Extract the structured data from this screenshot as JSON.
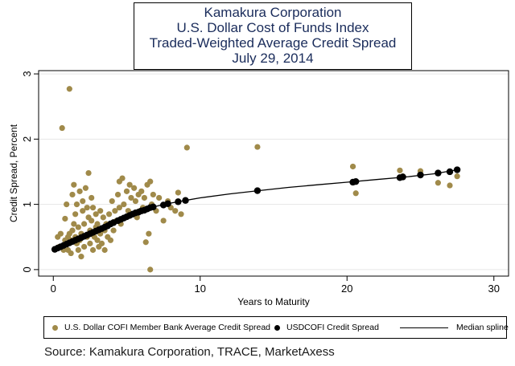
{
  "title_lines": [
    "Kamakura Corporation",
    "U.S. Dollar Cost of Funds Index",
    "Traded-Weighted Average Credit Spread",
    "July 29, 2014"
  ],
  "source": "Source: Kamakura Corporation, TRACE, MarketAxess",
  "colors": {
    "member": "#a08a4a",
    "cofi": "#000000",
    "spline": "#000000",
    "title": "#1a2c5b"
  },
  "chart_data": {
    "type": "scatter",
    "xlabel": "Years to Maturity",
    "ylabel": "Credit Spread, Percent",
    "xlim": [
      -1,
      31
    ],
    "ylim": [
      -0.1,
      3.05
    ],
    "xticks": [
      0,
      10,
      20,
      30
    ],
    "yticks": [
      0,
      1,
      2,
      3
    ],
    "grid": true,
    "legend": "bottom",
    "series": [
      {
        "name": "U.S. Dollar COFI Member Bank Average Credit Spread",
        "kind": "scatter",
        "color": "#a08a4a",
        "points": [
          [
            0.3,
            0.5
          ],
          [
            0.4,
            0.35
          ],
          [
            0.5,
            0.55
          ],
          [
            0.6,
            2.17
          ],
          [
            0.7,
            0.3
          ],
          [
            0.8,
            0.45
          ],
          [
            0.8,
            0.78
          ],
          [
            0.9,
            1.0
          ],
          [
            1.0,
            0.3
          ],
          [
            1.0,
            0.5
          ],
          [
            1.1,
            0.55
          ],
          [
            1.1,
            2.77
          ],
          [
            1.2,
            0.25
          ],
          [
            1.2,
            0.45
          ],
          [
            1.3,
            0.6
          ],
          [
            1.3,
            1.15
          ],
          [
            1.4,
            1.3
          ],
          [
            1.4,
            0.7
          ],
          [
            1.5,
            0.5
          ],
          [
            1.5,
            0.85
          ],
          [
            1.6,
            0.4
          ],
          [
            1.6,
            1.0
          ],
          [
            1.7,
            0.3
          ],
          [
            1.7,
            0.65
          ],
          [
            1.8,
            1.2
          ],
          [
            1.8,
            0.45
          ],
          [
            1.9,
            0.55
          ],
          [
            1.9,
            0.2
          ],
          [
            2.0,
            0.9
          ],
          [
            2.0,
            1.05
          ],
          [
            2.1,
            0.35
          ],
          [
            2.1,
            0.7
          ],
          [
            2.2,
            1.25
          ],
          [
            2.3,
            0.5
          ],
          [
            2.3,
            0.95
          ],
          [
            2.4,
            0.8
          ],
          [
            2.4,
            1.48
          ],
          [
            2.5,
            0.4
          ],
          [
            2.5,
            0.6
          ],
          [
            2.6,
            1.1
          ],
          [
            2.6,
            0.75
          ],
          [
            2.7,
            0.3
          ],
          [
            2.7,
            0.95
          ],
          [
            2.8,
            0.5
          ],
          [
            2.9,
            0.85
          ],
          [
            2.9,
            0.65
          ],
          [
            3.0,
            0.45
          ],
          [
            3.0,
            0.7
          ],
          [
            3.1,
            0.35
          ],
          [
            3.2,
            0.55
          ],
          [
            3.2,
            0.9
          ],
          [
            3.3,
            0.4
          ],
          [
            3.4,
            0.8
          ],
          [
            3.5,
            0.6
          ],
          [
            3.5,
            0.3
          ],
          [
            3.6,
            0.7
          ],
          [
            3.7,
            0.5
          ],
          [
            3.8,
            0.85
          ],
          [
            3.9,
            0.45
          ],
          [
            4.0,
            1.05
          ],
          [
            4.1,
            0.6
          ],
          [
            4.2,
            0.9
          ],
          [
            4.3,
            0.75
          ],
          [
            4.4,
            1.15
          ],
          [
            4.5,
            1.35
          ],
          [
            4.5,
            0.95
          ],
          [
            4.6,
            0.7
          ],
          [
            4.7,
            1.4
          ],
          [
            4.8,
            1.0
          ],
          [
            4.9,
            0.8
          ],
          [
            5.0,
            1.2
          ],
          [
            5.1,
            0.9
          ],
          [
            5.2,
            1.3
          ],
          [
            5.3,
            1.1
          ],
          [
            5.4,
            0.85
          ],
          [
            5.5,
            1.25
          ],
          [
            5.6,
            1.05
          ],
          [
            5.7,
            0.8
          ],
          [
            5.8,
            1.15
          ],
          [
            5.9,
            0.9
          ],
          [
            6.0,
            1.2
          ],
          [
            6.1,
            0.95
          ],
          [
            6.2,
            1.1
          ],
          [
            6.3,
            0.42
          ],
          [
            6.4,
            1.3
          ],
          [
            6.5,
            0.55
          ],
          [
            6.6,
            0.0
          ],
          [
            6.6,
            1.35
          ],
          [
            6.7,
            1.0
          ],
          [
            6.8,
            1.15
          ],
          [
            7.0,
            0.9
          ],
          [
            7.2,
            1.1
          ],
          [
            7.5,
            0.75
          ],
          [
            7.8,
            1.05
          ],
          [
            8.0,
            0.95
          ],
          [
            8.3,
            0.9
          ],
          [
            8.5,
            1.18
          ],
          [
            8.7,
            0.85
          ],
          [
            9.1,
            1.87
          ],
          [
            13.9,
            1.88
          ],
          [
            20.4,
            1.58
          ],
          [
            20.6,
            1.17
          ],
          [
            23.6,
            1.52
          ],
          [
            23.8,
            1.43
          ],
          [
            25.0,
            1.51
          ],
          [
            26.2,
            1.33
          ],
          [
            27.0,
            1.29
          ],
          [
            27.5,
            1.43
          ]
        ]
      },
      {
        "name": "USDCOFI Credit Spread",
        "kind": "scatter",
        "color": "#000000",
        "points": [
          [
            0.1,
            0.31
          ],
          [
            0.3,
            0.33
          ],
          [
            0.5,
            0.35
          ],
          [
            0.7,
            0.37
          ],
          [
            0.9,
            0.39
          ],
          [
            1.1,
            0.41
          ],
          [
            1.3,
            0.43
          ],
          [
            1.5,
            0.45
          ],
          [
            1.7,
            0.47
          ],
          [
            1.9,
            0.49
          ],
          [
            2.1,
            0.51
          ],
          [
            2.3,
            0.53
          ],
          [
            2.5,
            0.55
          ],
          [
            2.7,
            0.57
          ],
          [
            2.9,
            0.59
          ],
          [
            3.1,
            0.61
          ],
          [
            3.3,
            0.63
          ],
          [
            3.5,
            0.65
          ],
          [
            3.7,
            0.67
          ],
          [
            3.9,
            0.7
          ],
          [
            4.1,
            0.72
          ],
          [
            4.4,
            0.75
          ],
          [
            4.6,
            0.77
          ],
          [
            4.8,
            0.79
          ],
          [
            5.0,
            0.81
          ],
          [
            5.2,
            0.83
          ],
          [
            5.4,
            0.85
          ],
          [
            5.6,
            0.87
          ],
          [
            5.8,
            0.88
          ],
          [
            6.0,
            0.9
          ],
          [
            6.2,
            0.91
          ],
          [
            6.4,
            0.93
          ],
          [
            6.6,
            0.95
          ],
          [
            6.8,
            0.96
          ],
          [
            7.5,
            0.99
          ],
          [
            7.8,
            1.01
          ],
          [
            8.5,
            1.04
          ],
          [
            9.0,
            1.06
          ],
          [
            13.9,
            1.21
          ],
          [
            20.4,
            1.34
          ],
          [
            20.6,
            1.35
          ],
          [
            23.6,
            1.41
          ],
          [
            23.8,
            1.42
          ],
          [
            25.0,
            1.45
          ],
          [
            26.2,
            1.48
          ],
          [
            27.0,
            1.5
          ],
          [
            27.5,
            1.53
          ]
        ]
      },
      {
        "name": "Median spline",
        "kind": "line",
        "color": "#000000",
        "points": [
          [
            0.0,
            0.3
          ],
          [
            1.0,
            0.4
          ],
          [
            2.0,
            0.5
          ],
          [
            3.0,
            0.6
          ],
          [
            4.0,
            0.71
          ],
          [
            5.0,
            0.81
          ],
          [
            6.0,
            0.9
          ],
          [
            7.0,
            0.97
          ],
          [
            8.0,
            1.02
          ],
          [
            9.0,
            1.06
          ],
          [
            10.0,
            1.1
          ],
          [
            12.0,
            1.16
          ],
          [
            14.0,
            1.21
          ],
          [
            16.0,
            1.26
          ],
          [
            18.0,
            1.3
          ],
          [
            20.0,
            1.34
          ],
          [
            22.0,
            1.38
          ],
          [
            24.0,
            1.42
          ],
          [
            26.0,
            1.47
          ],
          [
            27.5,
            1.53
          ]
        ]
      }
    ]
  }
}
